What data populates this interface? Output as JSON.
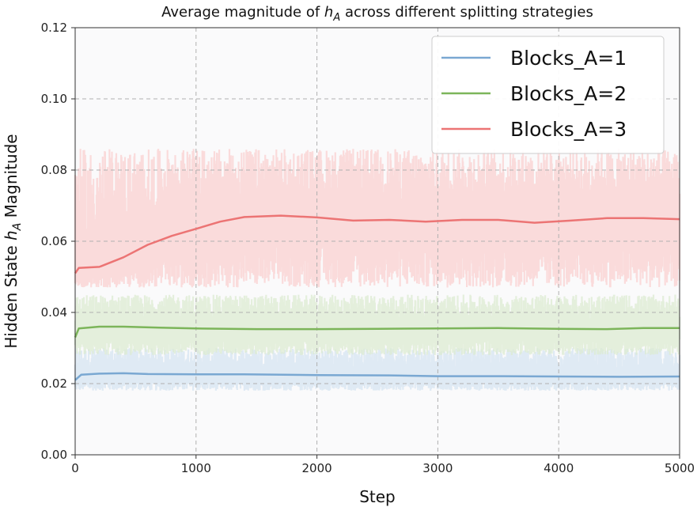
{
  "chart_data": {
    "type": "line",
    "title_prefix": "Average magnitude of ",
    "title_math": "h",
    "title_math_sub": "A",
    "title_suffix": " across different splitting strategies",
    "xlabel": "Step",
    "ylabel_prefix": "Hidden State ",
    "ylabel_math": "h",
    "ylabel_math_sub": "A",
    "ylabel_suffix": " Magnitude",
    "xlim": [
      0,
      5000
    ],
    "ylim": [
      0,
      0.12
    ],
    "x_ticks": [
      "0",
      "1000",
      "2000",
      "3000",
      "4000",
      "5000"
    ],
    "y_ticks": [
      "0.00",
      "0.02",
      "0.04",
      "0.06",
      "0.08",
      "0.10",
      "0.12"
    ],
    "grid": true,
    "legend_position": "top-right",
    "series": [
      {
        "name": "Blocks_A=1",
        "color": "#7aa8d2",
        "band_color": "#d6e4f2",
        "noise_low": 0.018,
        "noise_high": 0.03,
        "x": [
          0,
          50,
          200,
          400,
          600,
          1000,
          1400,
          2000,
          2600,
          3000,
          3500,
          4000,
          4500,
          5000
        ],
        "y": [
          0.021,
          0.0225,
          0.0228,
          0.0229,
          0.0227,
          0.0226,
          0.0226,
          0.0224,
          0.0223,
          0.0221,
          0.0221,
          0.022,
          0.0219,
          0.022
        ]
      },
      {
        "name": "Blocks_A=2",
        "color": "#7cb55a",
        "band_color": "#dcebd1",
        "noise_low": 0.028,
        "noise_high": 0.045,
        "x": [
          0,
          30,
          200,
          400,
          700,
          1000,
          1500,
          2000,
          2500,
          3000,
          3500,
          4000,
          4400,
          4700,
          5000
        ],
        "y": [
          0.033,
          0.0355,
          0.036,
          0.036,
          0.0357,
          0.0355,
          0.0353,
          0.0353,
          0.0354,
          0.0355,
          0.0356,
          0.0354,
          0.0353,
          0.0356,
          0.0356
        ]
      },
      {
        "name": "Blocks_A=3",
        "color": "#ec7474",
        "band_color": "#f9d0d0",
        "noise_low": 0.047,
        "noise_high": 0.086,
        "x": [
          0,
          30,
          200,
          400,
          600,
          800,
          1000,
          1200,
          1400,
          1700,
          2000,
          2300,
          2600,
          2900,
          3200,
          3500,
          3800,
          4100,
          4400,
          4700,
          5000
        ],
        "y": [
          0.051,
          0.0525,
          0.0528,
          0.0555,
          0.059,
          0.0615,
          0.0635,
          0.0655,
          0.0668,
          0.0672,
          0.0667,
          0.0658,
          0.066,
          0.0655,
          0.066,
          0.066,
          0.0652,
          0.0658,
          0.0665,
          0.0665,
          0.0662
        ]
      }
    ]
  }
}
